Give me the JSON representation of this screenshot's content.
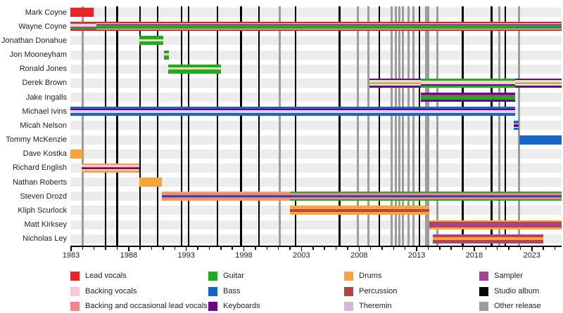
{
  "colors": {
    "red": "#e8232a",
    "pink": "#f6c7d4",
    "salmon": "#ef8585",
    "green": "#1fad1f",
    "blue": "#1467c6",
    "purple": "#670a87",
    "orange": "#f8a33c",
    "maroon": "#b1453f",
    "theremin": "#d5b8d8",
    "magenta": "#a8409c",
    "tan": "#efd9b4",
    "white": "#ffffff",
    "black": "#000000",
    "gray": "#9c9c9c"
  },
  "chart_data": {
    "type": "timeline",
    "x_axis": {
      "unit": "year",
      "min": 1982.95,
      "max": 2025.7,
      "labeled_ticks": [
        1983,
        1988,
        1993,
        1998,
        2003,
        2008,
        2013,
        2018,
        2023
      ],
      "minor_tick_from": 1983,
      "minor_tick_to": 2025
    },
    "members": [
      {
        "name": "Mark Coyne",
        "segments": [
          {
            "from": 1982.95,
            "to": 1984.95,
            "stripes": [
              [
                "red",
                1
              ]
            ]
          }
        ]
      },
      {
        "name": "Wayne Coyne",
        "segments": [
          {
            "from": 1982.95,
            "to": 1985.2,
            "stripes": [
              [
                "red",
                2
              ],
              [
                "green",
                1.2
              ],
              [
                "pink",
                4
              ],
              [
                "magenta",
                1.4
              ],
              [
                "green",
                2.2
              ],
              [
                "red",
                2
              ]
            ]
          },
          {
            "from": 1985.2,
            "to": 2021.55,
            "stripes": [
              [
                "red",
                2
              ],
              [
                "pink",
                1.2
              ],
              [
                "magenta",
                1.8
              ],
              [
                "green",
                4.4
              ],
              [
                "pink",
                1.2
              ],
              [
                "red",
                2
              ]
            ]
          },
          {
            "from": 2021.55,
            "to": 2025.7,
            "stripes": [
              [
                "red",
                2
              ],
              [
                "pink",
                1.2
              ],
              [
                "magenta",
                1.8
              ],
              [
                "green",
                1.5
              ],
              [
                "blue",
                1.4
              ],
              [
                "green",
                1.5
              ],
              [
                "pink",
                1.2
              ],
              [
                "red",
                2
              ]
            ]
          }
        ]
      },
      {
        "name": "Jonathan Donahue",
        "segments": [
          {
            "from": 1988.9,
            "to": 1991.0,
            "stripes": [
              [
                "green",
                4
              ],
              [
                "tan",
                3
              ],
              [
                "green",
                5
              ]
            ]
          }
        ]
      },
      {
        "name": "Jon Mooneyham",
        "segments": [
          {
            "from": 1991.05,
            "to": 1991.5,
            "stripes": [
              [
                "green",
                4
              ],
              [
                "tan",
                3
              ],
              [
                "green",
                5
              ]
            ]
          }
        ]
      },
      {
        "name": "Ronald Jones",
        "segments": [
          {
            "from": 1991.4,
            "to": 1996.0,
            "stripes": [
              [
                "green",
                4
              ],
              [
                "tan",
                3
              ],
              [
                "green",
                5
              ]
            ]
          }
        ]
      },
      {
        "name": "Derek Brown",
        "segments": [
          {
            "from": 2008.9,
            "to": 2013.35,
            "stripes": [
              [
                "purple",
                2
              ],
              [
                "tan",
                2.5
              ],
              [
                "green",
                1.3
              ],
              [
                "tan",
                2.5
              ],
              [
                "purple",
                2
              ]
            ]
          },
          {
            "from": 2013.35,
            "to": 2021.55,
            "stripes": [
              [
                "green",
                2
              ],
              [
                "tan",
                1.6
              ],
              [
                "pink",
                2.6
              ],
              [
                "purple",
                1.6
              ],
              [
                "green",
                2
              ]
            ]
          },
          {
            "from": 2021.55,
            "to": 2025.7,
            "stripes": [
              [
                "purple",
                2
              ],
              [
                "tan",
                2.5
              ],
              [
                "green",
                1.3
              ],
              [
                "tan",
                2.5
              ],
              [
                "purple",
                2
              ]
            ]
          }
        ]
      },
      {
        "name": "Jake Ingalls",
        "segments": [
          {
            "from": 2013.35,
            "to": 2021.55,
            "stripes": [
              [
                "purple",
                2.8
              ],
              [
                "magenta",
                1.4
              ],
              [
                "green",
                3.6
              ],
              [
                "purple",
                2.8
              ]
            ]
          }
        ]
      },
      {
        "name": "Michael Ivins",
        "segments": [
          {
            "from": 1982.95,
            "to": 2021.55,
            "stripes": [
              [
                "blue",
                3
              ],
              [
                "purple",
                2
              ],
              [
                "pink",
                3
              ],
              [
                "blue",
                4.5
              ]
            ]
          }
        ]
      },
      {
        "name": "Micah Nelson",
        "segments": [
          {
            "from": 2021.4,
            "to": 2021.85,
            "stripes": [
              [
                "blue",
                2.5
              ],
              [
                "white",
                1
              ],
              [
                "purple",
                2.5
              ],
              [
                "white",
                1
              ],
              [
                "blue",
                2.5
              ]
            ]
          }
        ]
      },
      {
        "name": "Tommy McKenzie",
        "segments": [
          {
            "from": 2021.9,
            "to": 2025.7,
            "stripes": [
              [
                "blue",
                1
              ]
            ]
          }
        ]
      },
      {
        "name": "Dave Kostka",
        "segments": [
          {
            "from": 1982.95,
            "to": 1984.0,
            "stripes": [
              [
                "orange",
                1
              ]
            ]
          }
        ]
      },
      {
        "name": "Richard English",
        "segments": [
          {
            "from": 1983.9,
            "to": 1988.9,
            "stripes": [
              [
                "orange",
                2.3
              ],
              [
                "pink",
                2
              ],
              [
                "maroon",
                1.4
              ],
              [
                "purple",
                1.4
              ],
              [
                "pink",
                2
              ],
              [
                "orange",
                2.3
              ]
            ]
          }
        ]
      },
      {
        "name": "Nathan Roberts",
        "segments": [
          {
            "from": 1988.9,
            "to": 1990.9,
            "stripes": [
              [
                "orange",
                1
              ]
            ]
          }
        ]
      },
      {
        "name": "Steven Drozd",
        "segments": [
          {
            "from": 1990.9,
            "to": 2002.0,
            "stripes": [
              [
                "orange",
                1.6
              ],
              [
                "salmon",
                2.8
              ],
              [
                "blue",
                1.3
              ],
              [
                "purple",
                1.5
              ],
              [
                "salmon",
                2.8
              ],
              [
                "orange",
                1.6
              ]
            ]
          },
          {
            "from": 2002.0,
            "to": 2025.7,
            "stripes": [
              [
                "green",
                1.6
              ],
              [
                "salmon",
                2.8
              ],
              [
                "blue",
                1.3
              ],
              [
                "purple",
                1.5
              ],
              [
                "salmon",
                2.8
              ],
              [
                "green",
                1.6
              ]
            ]
          }
        ]
      },
      {
        "name": "Kliph Scurlock",
        "segments": [
          {
            "from": 2002.0,
            "to": 2014.1,
            "stripes": [
              [
                "orange",
                3.2
              ],
              [
                "maroon",
                2.6
              ],
              [
                "orange",
                3.2
              ]
            ]
          }
        ]
      },
      {
        "name": "Matt Kirksey",
        "segments": [
          {
            "from": 2014.1,
            "to": 2025.7,
            "stripes": [
              [
                "orange",
                1.8
              ],
              [
                "maroon",
                1.6
              ],
              [
                "magenta",
                3.4
              ],
              [
                "maroon",
                1.6
              ],
              [
                "orange",
                1.8
              ]
            ]
          }
        ]
      },
      {
        "name": "Nicholas Ley",
        "segments": [
          {
            "from": 2014.4,
            "to": 2024.0,
            "stripes": [
              [
                "magenta",
                1.6
              ],
              [
                "maroon",
                1.6
              ],
              [
                "orange",
                3.2
              ],
              [
                "maroon",
                1.6
              ],
              [
                "magenta",
                1.6
              ]
            ]
          }
        ]
      }
    ],
    "studio_album_lines": [
      1986.0,
      1987.0,
      1989.0,
      1990.5,
      1992.6,
      1993.2,
      1995.7,
      1997.75,
      1999.3,
      2002.5,
      2006.3,
      2009.75,
      2013.25,
      2017.0,
      2019.5,
      2020.7
    ],
    "other_release_lines": [
      1983.98,
      2001.1,
      2007.9,
      2008.8,
      2010.85,
      2011.2,
      2011.5,
      2011.8,
      2012.3,
      2012.7,
      2013.8,
      2014.0,
      2014.8,
      2020.2,
      2021.9
    ],
    "legend": {
      "columns": [
        [
          {
            "label": "Lead vocals",
            "color": "red"
          },
          {
            "label": "Backing vocals",
            "color": "pink"
          },
          {
            "label": "Backing and occasional lead vocals",
            "color": "salmon"
          }
        ],
        [
          {
            "label": "Guitar",
            "color": "green"
          },
          {
            "label": "Bass",
            "color": "blue"
          },
          {
            "label": "Keyboards",
            "color": "purple"
          }
        ],
        [
          {
            "label": "Drums",
            "color": "orange"
          },
          {
            "label": "Percussion",
            "color": "maroon"
          },
          {
            "label": "Theremin",
            "color": "theremin"
          }
        ],
        [
          {
            "label": "Sampler",
            "color": "magenta"
          },
          {
            "label": "Studio album",
            "color": "black"
          },
          {
            "label": "Other release",
            "color": "gray"
          }
        ]
      ]
    }
  }
}
